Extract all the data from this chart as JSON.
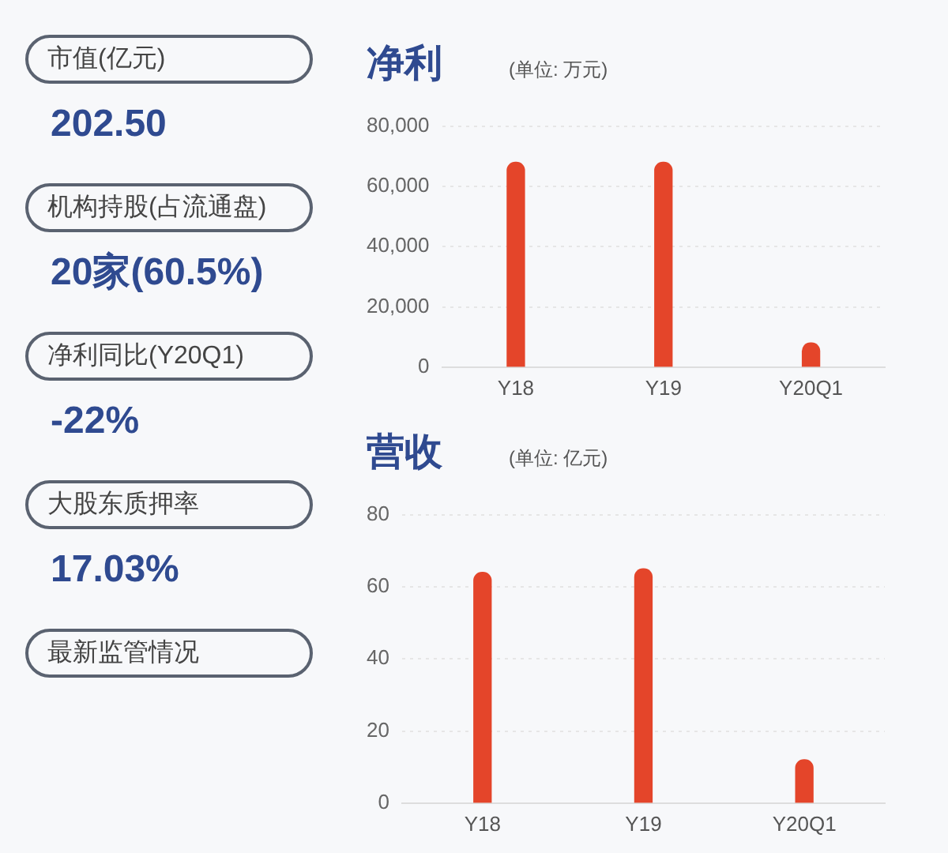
{
  "chart_data": [
    {
      "type": "other",
      "categories": [
        "市值(亿元)",
        "机构持股(占流通盘)",
        "净利同比(Y20Q1)",
        "大股东质押率",
        "最新监管情况"
      ],
      "value_labels": [
        "202.50",
        "20家(60.5%)",
        "-22%",
        "17.03%",
        null
      ]
    },
    {
      "type": "bar",
      "title": "净利",
      "subtitle": "(单位: 万元)",
      "categories": [
        "Y18",
        "Y19",
        "Y20Q1"
      ],
      "values": [
        68000,
        68000,
        8000
      ],
      "color": "#e4452a",
      "ylim": [
        0,
        80000
      ],
      "yticks": [
        0,
        {
          "value": 20000,
          "label": "20,000"
        },
        {
          "value": 40000,
          "label": "40,000"
        },
        {
          "value": 60000,
          "label": "60,000"
        },
        {
          "value": 80000,
          "label": "80,000"
        }
      ],
      "grid": "y"
    },
    {
      "type": "bar",
      "title": "营收",
      "subtitle": "(单位: 亿元)",
      "categories": [
        "Y18",
        "Y19",
        "Y20Q1"
      ],
      "values": [
        64,
        65,
        12
      ],
      "color": "#e4452a",
      "ylim": [
        0,
        80
      ],
      "yticks": [
        0,
        20,
        40,
        60,
        80
      ],
      "grid": "y"
    }
  ]
}
